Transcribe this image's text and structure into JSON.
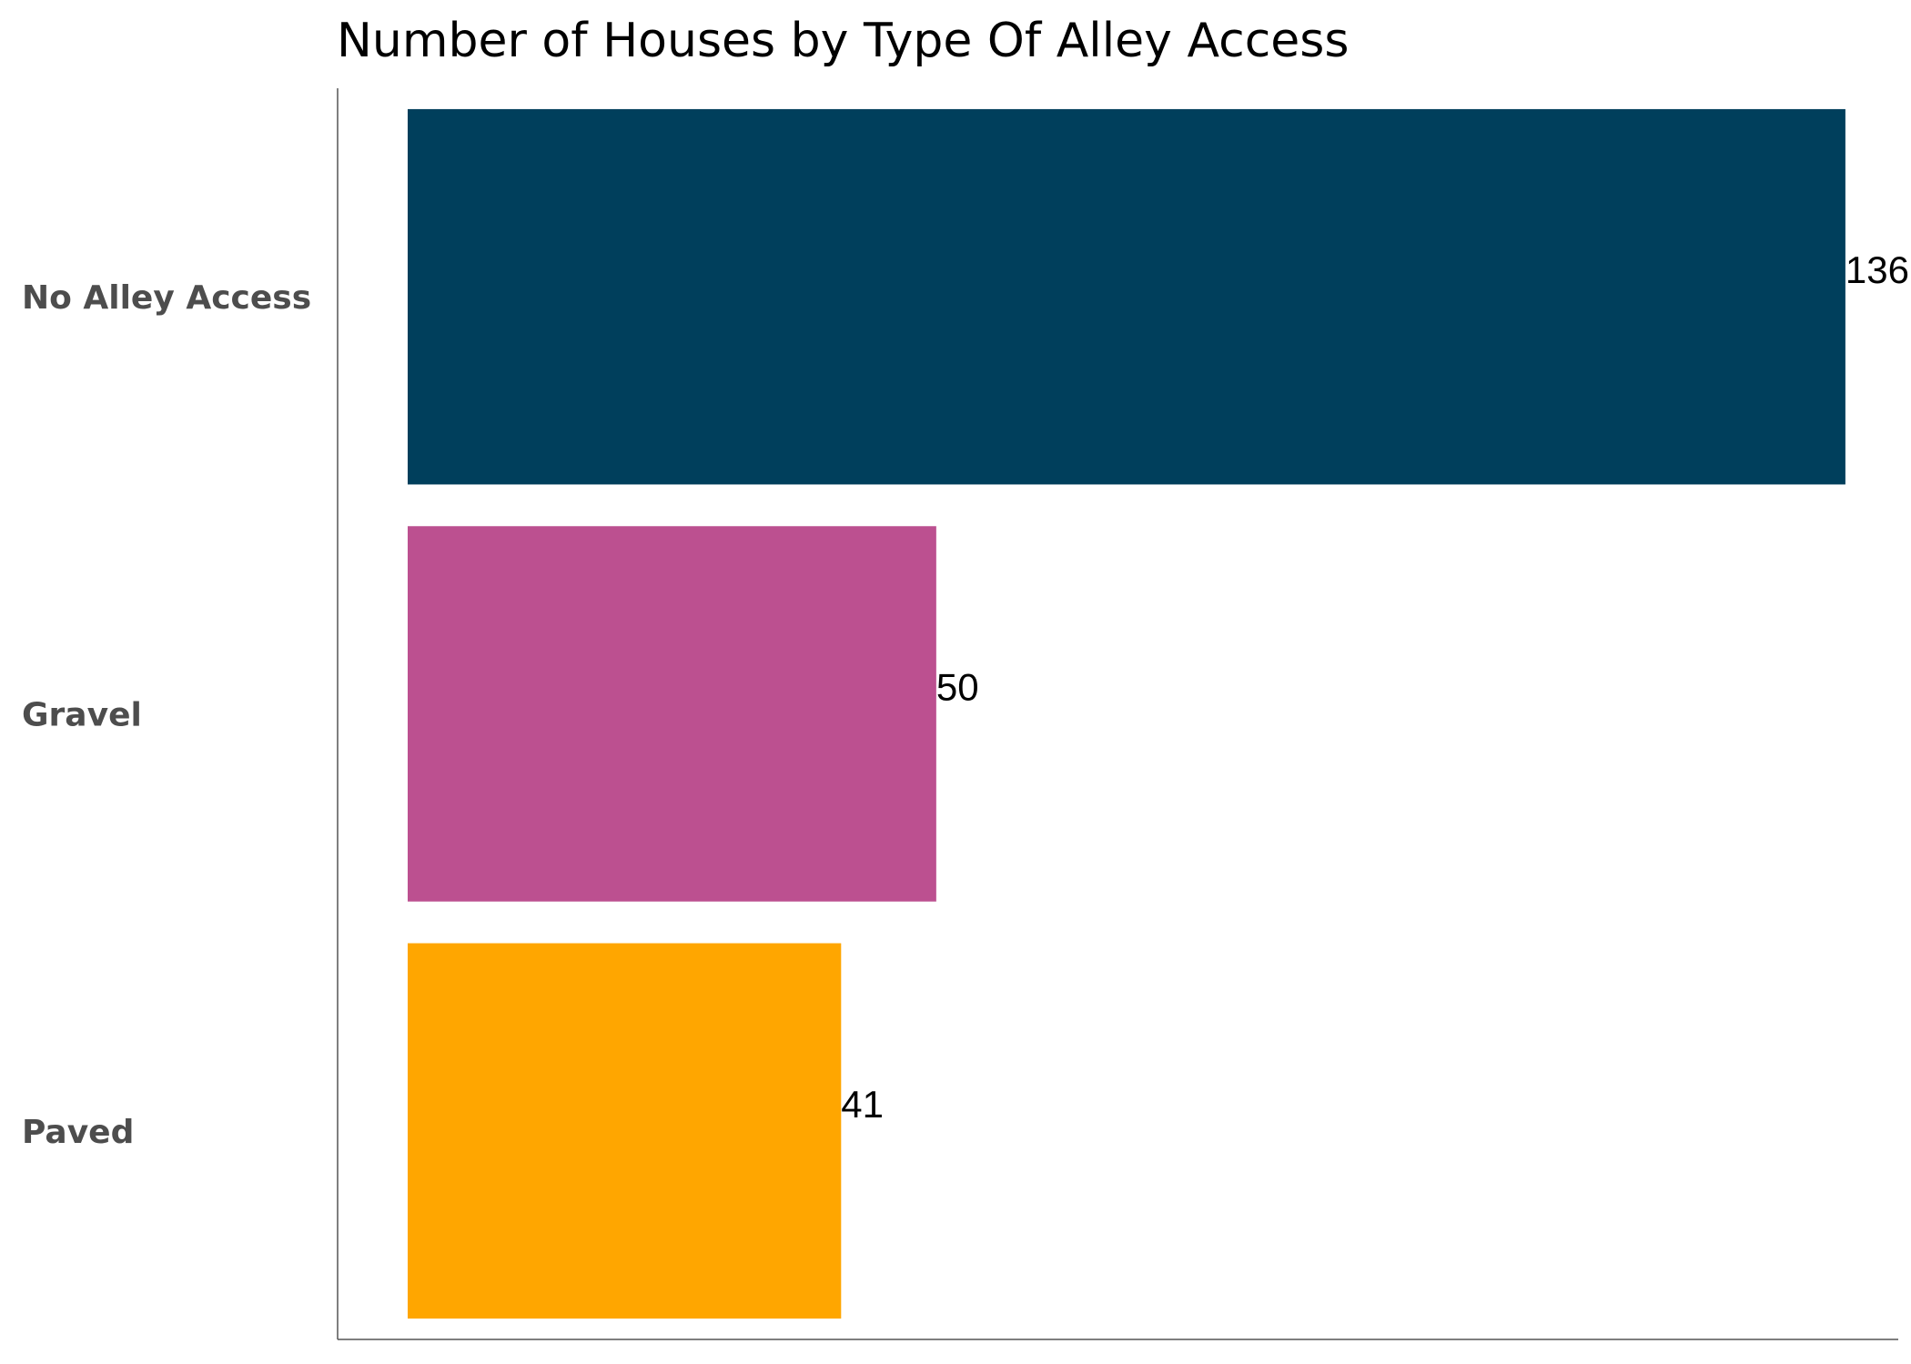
{
  "chart_data": {
    "type": "bar",
    "orientation": "horizontal",
    "title": "Number of Houses by Type Of Alley Access",
    "categories": [
      "No Alley Access",
      "Gravel",
      "Paved"
    ],
    "values": [
      136,
      50,
      41
    ],
    "colors": [
      "#003f5c",
      "#bc5090",
      "#ffa600"
    ],
    "xlim": [
      0,
      141
    ],
    "xlabel": "",
    "ylabel": "",
    "grid": false,
    "legend": "none",
    "data_labels": true
  }
}
